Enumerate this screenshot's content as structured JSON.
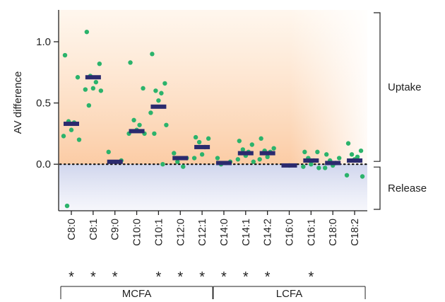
{
  "chart_data": {
    "type": "scatter",
    "ylabel": "AV difference",
    "ylim": [
      -0.38,
      1.26
    ],
    "yticks": [
      0.0,
      0.5,
      1.0
    ],
    "ytick_labels": [
      "0.0",
      "0.5",
      "1.0"
    ],
    "categories": [
      "C8:0",
      "C8:1",
      "C9:0",
      "C10:0",
      "C10:1",
      "C12:0",
      "C12:1",
      "C14:0",
      "C14:1",
      "C14:2",
      "C16:0",
      "C16:1",
      "C18:0",
      "C18:2"
    ],
    "points": [
      [
        0.89,
        0.71,
        0.35,
        0.34,
        0.28,
        0.23,
        0.2,
        -0.34
      ],
      [
        1.08,
        0.82,
        0.72,
        0.67,
        0.62,
        0.61,
        0.6,
        0.48
      ],
      [
        0.1,
        0.03
      ],
      [
        0.83,
        0.62,
        0.36,
        0.32,
        0.28,
        0.25,
        0.25
      ],
      [
        0.9,
        0.66,
        0.6,
        0.58,
        0.52,
        0.42,
        0.32,
        0.25,
        0.0
      ],
      [
        0.09,
        0.05,
        0.02,
        -0.02
      ],
      [
        0.22,
        0.21,
        0.18,
        0.14,
        0.08,
        0.05
      ],
      [
        0.05,
        0.02,
        0.0
      ],
      [
        0.19,
        0.16,
        0.12,
        0.1,
        0.07,
        0.04,
        0.02
      ],
      [
        0.21,
        0.13,
        0.11,
        0.1,
        0.06,
        0.04
      ],
      [
        -0.01
      ],
      [
        0.1,
        0.1,
        0.05,
        0.03,
        0.0,
        -0.02,
        -0.03
      ],
      [
        0.08,
        0.05,
        0.03,
        0.01,
        -0.01,
        -0.03
      ],
      [
        0.17,
        0.11,
        0.08,
        0.06,
        0.04,
        -0.09,
        -0.1
      ]
    ],
    "medians": [
      0.33,
      0.71,
      0.02,
      0.27,
      0.47,
      0.05,
      0.14,
      0.01,
      0.09,
      0.09,
      -0.01,
      0.03,
      0.01,
      0.03
    ],
    "significant": [
      true,
      true,
      true,
      false,
      true,
      true,
      true,
      true,
      true,
      true,
      false,
      true,
      false,
      false
    ],
    "significance_marker": "*",
    "groups": [
      {
        "label": "MCFA",
        "from": 0,
        "to": 6
      },
      {
        "label": "LCFA",
        "from": 7,
        "to": 13
      }
    ],
    "regions": [
      {
        "label": "Uptake",
        "from": 0.0,
        "to": 1.26,
        "color": "#fcd9b4"
      },
      {
        "label": "Release",
        "from": -0.38,
        "to": 0.0,
        "color": "#d4d9ee"
      }
    ],
    "reference_line": 0.0,
    "grid": false,
    "colors": {
      "point": "#2bb36b",
      "median": "#2b2a6e",
      "axis": "#222222",
      "reference": "#111111"
    }
  }
}
